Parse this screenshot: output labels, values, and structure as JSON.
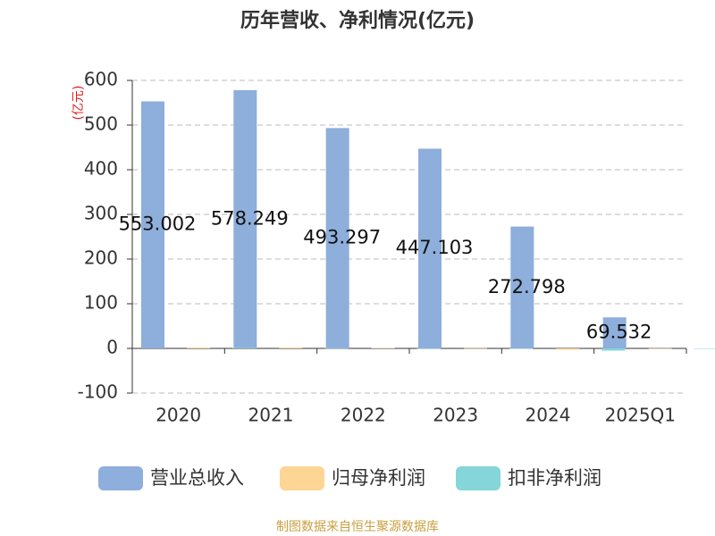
{
  "chart_data": {
    "type": "bar",
    "title": "历年营收、净利情况(亿元)",
    "y_label": "(亿元)",
    "source": "制图数据来自恒生聚源数据库",
    "categories": [
      "2020",
      "2021",
      "2022",
      "2023",
      "2024",
      "2025Q1"
    ],
    "series": [
      {
        "name": "营业总收入",
        "color": "#8eaedb",
        "values": [
          553.002,
          578.249,
          493.297,
          447.103,
          272.798,
          69.532
        ]
      },
      {
        "name": "归母净利润",
        "color": "#fdd594",
        "values": [
          2,
          2,
          1,
          0.5,
          -3,
          0.3
        ]
      },
      {
        "name": "扣非净利润",
        "color": "#84d6d8",
        "values": [
          1.5,
          0.5,
          0.2,
          -1,
          -5,
          0.1
        ]
      }
    ],
    "data_labels_series": 0,
    "ylim": [
      -100,
      600
    ],
    "yticks": [
      -100,
      0,
      100,
      200,
      300,
      400,
      500,
      600
    ],
    "grid": true
  }
}
